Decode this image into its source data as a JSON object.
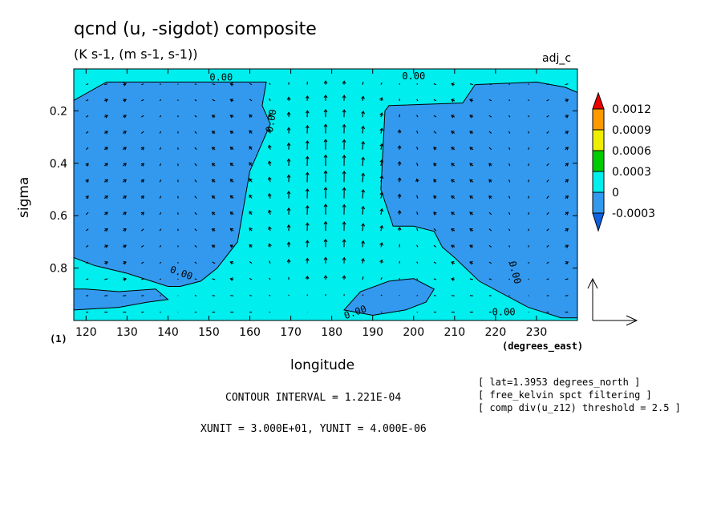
{
  "title": "qcnd (u, -sigdot) composite",
  "units": "(K s-1, (m s-1, s-1))",
  "case_label": "adj_c",
  "frame_label": "(1)",
  "colors": {
    "negative": "#3399ee",
    "zero_band": "#00eeee",
    "level_0003": "#00cc00",
    "level_0006": "#eeee00",
    "level_0009": "#ff9900",
    "level_0012": "#ee0000",
    "underflow": "#1060e0"
  },
  "chart_data": {
    "type": "heatmap",
    "variable": "qcnd",
    "overlay": "vector (u, -sigdot)",
    "xlabel": "longitude",
    "xunits_label": "(degrees_east)",
    "ylabel": "sigma",
    "xlim": [
      117,
      240
    ],
    "ylim": [
      1.0,
      0.04
    ],
    "x_ticks": [
      120,
      130,
      140,
      150,
      160,
      170,
      180,
      190,
      200,
      210,
      220,
      230
    ],
    "y_ticks": [
      0.2,
      0.4,
      0.6,
      0.8
    ],
    "y_tick_labels": [
      "0.2",
      "0.4",
      "0.6",
      "0.8"
    ],
    "colorbar_levels": [
      -0.0003,
      0,
      0.0003,
      0.0006,
      0.0009,
      0.0012
    ],
    "colorbar_labels": [
      "-0.0003",
      "0",
      "0.0003",
      "0.0006",
      "0.0009",
      "0.0012"
    ],
    "contour_label": "0.00",
    "regions_below_zero": [
      {
        "name": "western-negative",
        "lon": [
          117,
          125,
          145,
          164,
          163,
          165,
          160,
          157,
          152,
          148,
          143,
          140,
          130,
          122,
          117
        ],
        "sigma": [
          0.16,
          0.09,
          0.09,
          0.09,
          0.18,
          0.25,
          0.43,
          0.7,
          0.8,
          0.85,
          0.87,
          0.87,
          0.82,
          0.79,
          0.76
        ]
      },
      {
        "name": "eastern-negative",
        "lon": [
          193,
          194,
          212,
          215,
          230,
          237,
          240,
          240,
          236,
          228,
          222,
          216,
          210,
          207,
          205,
          200,
          195,
          192
        ],
        "sigma": [
          0.2,
          0.18,
          0.17,
          0.1,
          0.09,
          0.11,
          0.13,
          0.99,
          0.99,
          0.95,
          0.9,
          0.85,
          0.76,
          0.72,
          0.66,
          0.64,
          0.64,
          0.5
        ]
      },
      {
        "name": "lower-left-negative",
        "lon": [
          117,
          120,
          128,
          137,
          140,
          135,
          128,
          117
        ],
        "sigma": [
          0.88,
          0.88,
          0.89,
          0.88,
          0.92,
          0.93,
          0.95,
          0.96
        ]
      },
      {
        "name": "lower-center-negative",
        "lon": [
          183,
          187,
          194,
          200,
          205,
          203,
          198,
          190
        ],
        "sigma": [
          0.96,
          0.89,
          0.85,
          0.84,
          0.88,
          0.93,
          0.96,
          0.98
        ]
      }
    ],
    "vector_reference": {
      "xunit": "3.000E+01",
      "yunit": "4.000E-06"
    },
    "contour_interval": "1.221E-04"
  },
  "footer": {
    "contour_interval": "CONTOUR INTERVAL = 1.221E-04",
    "units_line": "XUNIT = 3.000E+01, YUNIT = 4.000E-06"
  },
  "notes": [
    "[ lat=1.3953 degrees_north ]",
    "[ free_kelvin spct filtering ]",
    "[ comp div(u_z12) threshold = 2.5 ]"
  ]
}
